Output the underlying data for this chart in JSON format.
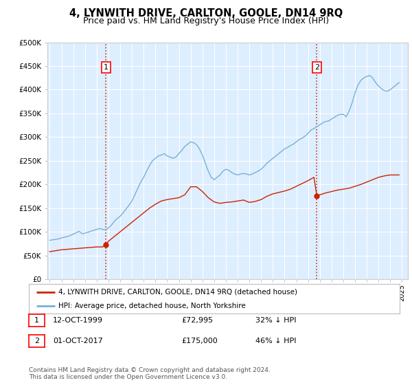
{
  "title": "4, LYNWITH DRIVE, CARLTON, GOOLE, DN14 9RQ",
  "subtitle": "Price paid vs. HM Land Registry's House Price Index (HPI)",
  "title_fontsize": 10.5,
  "subtitle_fontsize": 9,
  "background_color": "#ffffff",
  "plot_bg_color": "#ddeeff",
  "grid_color": "#ffffff",
  "ylim": [
    0,
    500000
  ],
  "yticks": [
    0,
    50000,
    100000,
    150000,
    200000,
    250000,
    300000,
    350000,
    400000,
    450000,
    500000
  ],
  "ytick_labels": [
    "£0",
    "£50K",
    "£100K",
    "£150K",
    "£200K",
    "£250K",
    "£300K",
    "£350K",
    "£400K",
    "£450K",
    "£500K"
  ],
  "xlim_start": 1994.8,
  "xlim_end": 2025.5,
  "xtick_years": [
    1995,
    1996,
    1997,
    1998,
    1999,
    2000,
    2001,
    2002,
    2003,
    2004,
    2005,
    2006,
    2007,
    2008,
    2009,
    2010,
    2011,
    2012,
    2013,
    2014,
    2015,
    2016,
    2017,
    2018,
    2019,
    2020,
    2021,
    2022,
    2023,
    2024,
    2025
  ],
  "hpi_color": "#7ab0d4",
  "price_color": "#cc2200",
  "marker_color": "#cc2200",
  "sale1_x": 1999.79,
  "sale1_y": 72995,
  "sale1_label": "1",
  "sale1_date": "12-OCT-1999",
  "sale1_price": "£72,995",
  "sale1_hpi": "32% ↓ HPI",
  "sale2_x": 2017.75,
  "sale2_y": 175000,
  "sale2_label": "2",
  "sale2_date": "01-OCT-2017",
  "sale2_price": "£175,000",
  "sale2_hpi": "46% ↓ HPI",
  "legend_label1": "4, LYNWITH DRIVE, CARLTON, GOOLE, DN14 9RQ (detached house)",
  "legend_label2": "HPI: Average price, detached house, North Yorkshire",
  "footnote": "Contains HM Land Registry data © Crown copyright and database right 2024.\nThis data is licensed under the Open Government Licence v3.0.",
  "hpi_data_x": [
    1995.0,
    1995.25,
    1995.5,
    1995.75,
    1996.0,
    1996.25,
    1996.5,
    1996.75,
    1997.0,
    1997.25,
    1997.5,
    1997.75,
    1998.0,
    1998.25,
    1998.5,
    1998.75,
    1999.0,
    1999.25,
    1999.5,
    1999.75,
    2000.0,
    2000.25,
    2000.5,
    2000.75,
    2001.0,
    2001.25,
    2001.5,
    2001.75,
    2002.0,
    2002.25,
    2002.5,
    2002.75,
    2003.0,
    2003.25,
    2003.5,
    2003.75,
    2004.0,
    2004.25,
    2004.5,
    2004.75,
    2005.0,
    2005.25,
    2005.5,
    2005.75,
    2006.0,
    2006.25,
    2006.5,
    2006.75,
    2007.0,
    2007.25,
    2007.5,
    2007.75,
    2008.0,
    2008.25,
    2008.5,
    2008.75,
    2009.0,
    2009.25,
    2009.5,
    2009.75,
    2010.0,
    2010.25,
    2010.5,
    2010.75,
    2011.0,
    2011.25,
    2011.5,
    2011.75,
    2012.0,
    2012.25,
    2012.5,
    2012.75,
    2013.0,
    2013.25,
    2013.5,
    2013.75,
    2014.0,
    2014.25,
    2014.5,
    2014.75,
    2015.0,
    2015.25,
    2015.5,
    2015.75,
    2016.0,
    2016.25,
    2016.5,
    2016.75,
    2017.0,
    2017.25,
    2017.5,
    2017.75,
    2018.0,
    2018.25,
    2018.5,
    2018.75,
    2019.0,
    2019.25,
    2019.5,
    2019.75,
    2020.0,
    2020.25,
    2020.5,
    2020.75,
    2021.0,
    2021.25,
    2021.5,
    2021.75,
    2022.0,
    2022.25,
    2022.5,
    2022.75,
    2023.0,
    2023.25,
    2023.5,
    2023.75,
    2024.0,
    2024.25,
    2024.5,
    2024.75
  ],
  "hpi_data_y": [
    82000,
    83000,
    84000,
    85000,
    87000,
    88500,
    90000,
    92000,
    95000,
    98000,
    101000,
    96000,
    97000,
    99000,
    101000,
    103000,
    105000,
    107000,
    105000,
    104000,
    108000,
    114000,
    122000,
    128000,
    133000,
    140000,
    148000,
    156000,
    165000,
    178000,
    192000,
    205000,
    215000,
    228000,
    240000,
    250000,
    255000,
    260000,
    262000,
    265000,
    260000,
    258000,
    255000,
    258000,
    265000,
    272000,
    280000,
    285000,
    290000,
    288000,
    284000,
    275000,
    262000,
    245000,
    228000,
    215000,
    210000,
    215000,
    220000,
    228000,
    232000,
    230000,
    225000,
    222000,
    220000,
    222000,
    223000,
    222000,
    220000,
    222000,
    225000,
    228000,
    232000,
    238000,
    245000,
    250000,
    255000,
    260000,
    265000,
    270000,
    275000,
    278000,
    282000,
    285000,
    290000,
    295000,
    298000,
    302000,
    308000,
    315000,
    318000,
    322000,
    326000,
    330000,
    333000,
    334000,
    338000,
    342000,
    346000,
    348000,
    348000,
    343000,
    355000,
    372000,
    393000,
    410000,
    420000,
    425000,
    428000,
    430000,
    425000,
    415000,
    408000,
    402000,
    398000,
    397000,
    400000,
    405000,
    410000,
    415000
  ],
  "price_line_x": [
    1995.0,
    1995.5,
    1996.0,
    1996.5,
    1997.0,
    1997.5,
    1998.0,
    1998.5,
    1999.0,
    1999.5,
    1999.79,
    2000.0,
    2000.5,
    2001.0,
    2001.5,
    2002.0,
    2002.5,
    2003.0,
    2003.5,
    2004.0,
    2004.5,
    2005.0,
    2005.5,
    2006.0,
    2006.5,
    2007.0,
    2007.5,
    2008.0,
    2008.5,
    2009.0,
    2009.5,
    2010.0,
    2010.5,
    2011.0,
    2011.5,
    2012.0,
    2012.5,
    2013.0,
    2013.5,
    2014.0,
    2014.5,
    2015.0,
    2015.5,
    2016.0,
    2016.5,
    2017.0,
    2017.5,
    2017.75,
    2018.0,
    2018.5,
    2019.0,
    2019.5,
    2020.0,
    2020.5,
    2021.0,
    2021.5,
    2022.0,
    2022.5,
    2023.0,
    2023.5,
    2024.0,
    2024.75
  ],
  "price_line_y": [
    58000,
    60000,
    62000,
    63000,
    64000,
    65000,
    66000,
    67000,
    68000,
    68000,
    72995,
    80000,
    90000,
    100000,
    110000,
    120000,
    130000,
    140000,
    150000,
    158000,
    165000,
    168000,
    170000,
    172000,
    178000,
    195000,
    195000,
    185000,
    172000,
    163000,
    160000,
    162000,
    163000,
    165000,
    167000,
    162000,
    164000,
    168000,
    175000,
    180000,
    183000,
    186000,
    190000,
    196000,
    202000,
    208000,
    215000,
    175000,
    178000,
    182000,
    185000,
    188000,
    190000,
    192000,
    196000,
    200000,
    205000,
    210000,
    215000,
    218000,
    220000,
    220000
  ]
}
